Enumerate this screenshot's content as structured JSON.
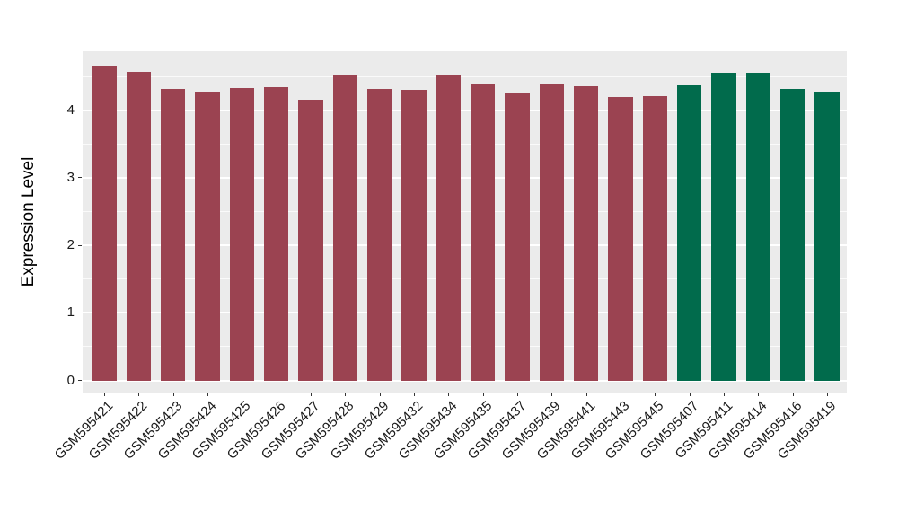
{
  "chart_data": {
    "type": "bar",
    "title": "",
    "xlabel": "",
    "ylabel": "Expression Level",
    "ylim": [
      0,
      4.87
    ],
    "yticks": [
      0,
      1,
      2,
      3,
      4
    ],
    "grid": "white major and minor horizontal gridlines on gray panel",
    "legend_position": "none",
    "categories": [
      "GSM595421",
      "GSM595422",
      "GSM595423",
      "GSM595424",
      "GSM595425",
      "GSM595426",
      "GSM595427",
      "GSM595428",
      "GSM595429",
      "GSM595432",
      "GSM595434",
      "GSM595435",
      "GSM595437",
      "GSM595439",
      "GSM595441",
      "GSM595443",
      "GSM595445",
      "GSM595407",
      "GSM595411",
      "GSM595414",
      "GSM595416",
      "GSM595419"
    ],
    "values": [
      4.66,
      4.57,
      4.32,
      4.27,
      4.33,
      4.34,
      4.16,
      4.51,
      4.32,
      4.3,
      4.52,
      4.4,
      4.26,
      4.38,
      4.35,
      4.19,
      4.21,
      4.37,
      4.56,
      4.56,
      4.32,
      4.28
    ],
    "bar_colors": [
      "#9B4351",
      "#9B4351",
      "#9B4351",
      "#9B4351",
      "#9B4351",
      "#9B4351",
      "#9B4351",
      "#9B4351",
      "#9B4351",
      "#9B4351",
      "#9B4351",
      "#9B4351",
      "#9B4351",
      "#9B4351",
      "#9B4351",
      "#9B4351",
      "#9B4351",
      "#016B4C",
      "#016B4C",
      "#016B4C",
      "#016B4C",
      "#016B4C"
    ]
  },
  "colors": {
    "bar_red": "#9B4351",
    "bar_green": "#016B4C",
    "panel_background": "#EBEBEB",
    "figure_background": "#FFFFFF",
    "gridline": "#FFFFFF",
    "axis_text": "#1A1A1A"
  }
}
